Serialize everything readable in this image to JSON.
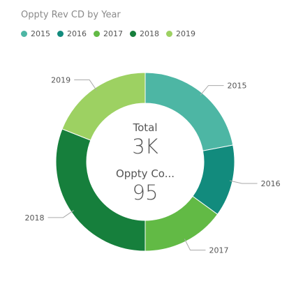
{
  "chart_data": {
    "type": "pie",
    "title": "Oppty Rev CD by Year",
    "donut": true,
    "legend_position": "top-left",
    "categories": [
      "2015",
      "2016",
      "2017",
      "2018",
      "2019"
    ],
    "values": [
      22,
      13,
      15,
      31,
      19
    ],
    "colors": [
      "#4db6a4",
      "#128b7d",
      "#62ba45",
      "#167f3c",
      "#9dd162"
    ],
    "center": [
      {
        "caption": "Total",
        "value": "3K"
      },
      {
        "caption": "Oppty Co...",
        "value": "95"
      }
    ]
  }
}
